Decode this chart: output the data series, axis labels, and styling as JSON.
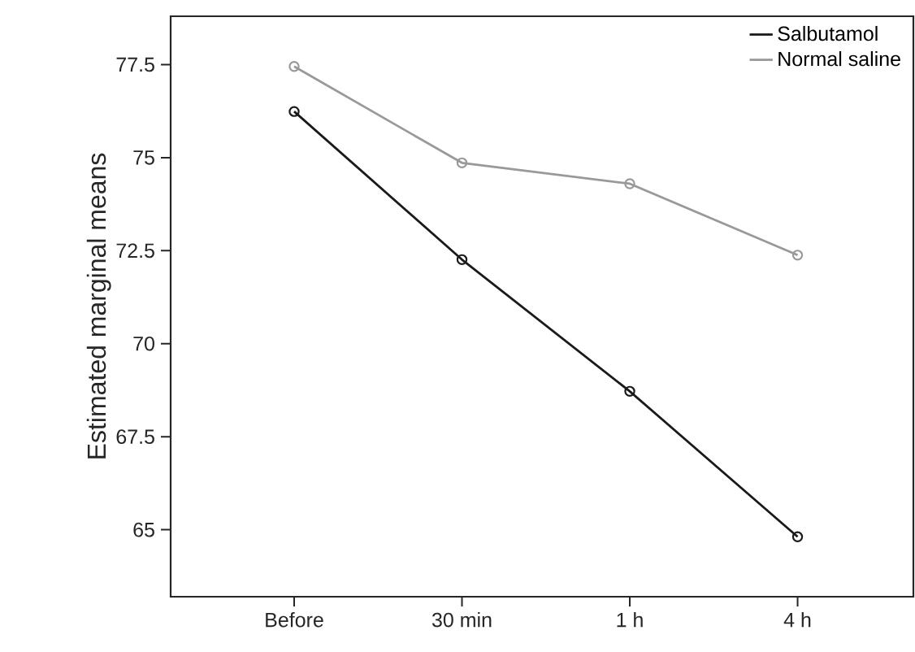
{
  "chart_data": {
    "type": "line",
    "ylabel": "Estimated marginal means",
    "categories": [
      "Before",
      "30 min",
      "1 h",
      "4 h"
    ],
    "series": [
      {
        "name": "Salbutamol",
        "color": "#1a1a1a",
        "values": [
          76.24,
          72.26,
          68.72,
          64.81
        ]
      },
      {
        "name": "Normal saline",
        "color": "#999999",
        "values": [
          77.45,
          74.86,
          74.3,
          72.38
        ]
      }
    ],
    "ylim": [
      63.2,
      78.8
    ],
    "yticks": [
      65,
      67.5,
      70,
      72.5,
      75,
      77.5
    ],
    "marker": "circle",
    "line_style": "solid",
    "legend": "top right",
    "grid": false
  }
}
